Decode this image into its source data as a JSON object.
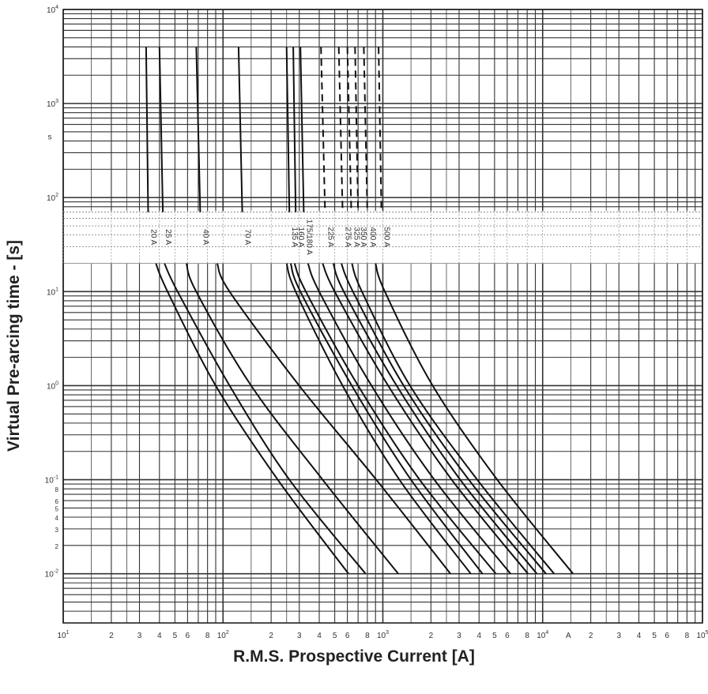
{
  "chart_data": {
    "type": "line",
    "xlabel": "R.M.S. Prospective Current [A]",
    "ylabel": "Virtual Pre-arcing time - [s]",
    "x_scale": "log",
    "y_scale": "log",
    "xlim": [
      10,
      100000
    ],
    "ylim": [
      0.003,
      10000
    ],
    "grid": true,
    "y_unit_label": "s",
    "x_unit_label": "A",
    "x_ticks": [
      {
        "label": "10",
        "sup": "1",
        "value": 10
      },
      {
        "label": "2",
        "value": 20
      },
      {
        "label": "3",
        "value": 30
      },
      {
        "label": "4",
        "value": 40
      },
      {
        "label": "5",
        "value": 50
      },
      {
        "label": "6",
        "value": 60
      },
      {
        "label": "8",
        "value": 80
      },
      {
        "label": "10",
        "sup": "2",
        "value": 100
      },
      {
        "label": "2",
        "value": 200
      },
      {
        "label": "3",
        "value": 300
      },
      {
        "label": "4",
        "value": 400
      },
      {
        "label": "5",
        "value": 500
      },
      {
        "label": "6",
        "value": 600
      },
      {
        "label": "8",
        "value": 800
      },
      {
        "label": "10",
        "sup": "3",
        "value": 1000
      },
      {
        "label": "2",
        "value": 2000
      },
      {
        "label": "3",
        "value": 3000
      },
      {
        "label": "4",
        "value": 4000
      },
      {
        "label": "5",
        "value": 5000
      },
      {
        "label": "6",
        "value": 6000
      },
      {
        "label": "8",
        "value": 8000
      },
      {
        "label": "10",
        "sup": "4",
        "value": 10000
      },
      {
        "label": "2",
        "value": 20000
      },
      {
        "label": "3",
        "value": 30000
      },
      {
        "label": "4",
        "value": 40000
      },
      {
        "label": "5",
        "value": 50000
      },
      {
        "label": "6",
        "value": 60000
      },
      {
        "label": "8",
        "value": 80000
      },
      {
        "label": "10",
        "sup": "5",
        "value": 100000
      }
    ],
    "y_ticks": [
      {
        "label": "10",
        "sup": "4",
        "value": 10000
      },
      {
        "label": "10",
        "sup": "3",
        "value": 1000
      },
      {
        "label": "10",
        "sup": "2",
        "value": 100
      },
      {
        "label": "10",
        "sup": "1",
        "value": 10
      },
      {
        "label": "10",
        "sup": "0",
        "value": 1
      },
      {
        "label": "10",
        "sup": "-1",
        "value": 0.1
      },
      {
        "label": "8",
        "value": 0.08
      },
      {
        "label": "6",
        "value": 0.06
      },
      {
        "label": "5",
        "value": 0.05
      },
      {
        "label": "4",
        "value": 0.04
      },
      {
        "label": "3",
        "value": 0.03
      },
      {
        "label": "2",
        "value": 0.02
      },
      {
        "label": "10",
        "sup": "-2",
        "value": 0.01
      }
    ],
    "series": [
      {
        "name": "20 A",
        "dashed": false,
        "upper": [
          [
            33,
            4000
          ],
          [
            34,
            70
          ]
        ],
        "lower": [
          [
            38,
            20
          ],
          [
            45,
            10
          ],
          [
            90,
            1
          ],
          [
            220,
            0.1
          ],
          [
            610,
            0.01
          ]
        ]
      },
      {
        "name": "25 A",
        "dashed": false,
        "upper": [
          [
            40,
            4000
          ],
          [
            42,
            70
          ]
        ],
        "lower": [
          [
            43,
            20
          ],
          [
            52,
            10
          ],
          [
            110,
            1
          ],
          [
            260,
            0.1
          ],
          [
            780,
            0.01
          ]
        ]
      },
      {
        "name": "40 A",
        "dashed": false,
        "upper": [
          [
            68,
            4000
          ],
          [
            72,
            70
          ]
        ],
        "lower": [
          [
            59,
            20
          ],
          [
            68,
            10
          ],
          [
            150,
            1
          ],
          [
            420,
            0.1
          ],
          [
            1250,
            0.01
          ]
        ]
      },
      {
        "name": "70 A",
        "dashed": false,
        "upper": [
          [
            125,
            4000
          ],
          [
            132,
            70
          ]
        ],
        "lower": [
          [
            92,
            20
          ],
          [
            110,
            10
          ],
          [
            300,
            1
          ],
          [
            910,
            0.1
          ],
          [
            2650,
            0.01
          ]
        ]
      },
      {
        "name": "135 A",
        "dashed": false,
        "upper": [
          [
            250,
            4000
          ],
          [
            260,
            70
          ]
        ],
        "lower": [
          [
            250,
            20
          ],
          [
            285,
            10
          ],
          [
            560,
            1
          ],
          [
            1270,
            0.1
          ],
          [
            3550,
            0.01
          ]
        ]
      },
      {
        "name": "160 A",
        "dashed": false,
        "upper": [
          [
            275,
            4000
          ],
          [
            285,
            70
          ]
        ],
        "lower": [
          [
            265,
            20
          ],
          [
            305,
            10
          ],
          [
            640,
            1
          ],
          [
            1500,
            0.1
          ],
          [
            4200,
            0.01
          ]
        ]
      },
      {
        "name": "175/180 A",
        "dashed": false,
        "upper": [
          [
            305,
            4000
          ],
          [
            320,
            70
          ]
        ],
        "lower": [
          [
            280,
            20
          ],
          [
            330,
            10
          ],
          [
            700,
            1
          ],
          [
            1700,
            0.1
          ],
          [
            5100,
            0.01
          ]
        ]
      },
      {
        "name": "225 A",
        "dashed": true,
        "upper": [
          [
            410,
            4000
          ],
          [
            435,
            70
          ]
        ],
        "lower": [
          [
            340,
            20
          ],
          [
            400,
            10
          ],
          [
            850,
            1
          ],
          [
            2100,
            0.1
          ],
          [
            6300,
            0.01
          ]
        ]
      },
      {
        "name": "275 A",
        "dashed": true,
        "upper": [
          [
            530,
            4000
          ],
          [
            560,
            70
          ]
        ],
        "lower": [
          [
            420,
            20
          ],
          [
            500,
            10
          ],
          [
            1080,
            1
          ],
          [
            2700,
            0.1
          ],
          [
            8100,
            0.01
          ]
        ]
      },
      {
        "name": "325 A",
        "dashed": true,
        "upper": [
          [
            600,
            4000
          ],
          [
            635,
            70
          ]
        ],
        "lower": [
          [
            490,
            20
          ],
          [
            570,
            10
          ],
          [
            1220,
            1
          ],
          [
            3050,
            0.1
          ],
          [
            9200,
            0.01
          ]
        ]
      },
      {
        "name": "350 A",
        "dashed": true,
        "upper": [
          [
            670,
            4000
          ],
          [
            700,
            70
          ]
        ],
        "lower": [
          [
            550,
            20
          ],
          [
            650,
            10
          ],
          [
            1350,
            1
          ],
          [
            3450,
            0.1
          ],
          [
            10500,
            0.01
          ]
        ]
      },
      {
        "name": "400 A",
        "dashed": true,
        "upper": [
          [
            760,
            4000
          ],
          [
            800,
            70
          ]
        ],
        "lower": [
          [
            640,
            20
          ],
          [
            740,
            10
          ],
          [
            1480,
            1
          ],
          [
            3900,
            0.1
          ],
          [
            11800,
            0.01
          ]
        ]
      },
      {
        "name": "500 A",
        "dashed": true,
        "upper": [
          [
            940,
            4000
          ],
          [
            980,
            70
          ]
        ],
        "lower": [
          [
            900,
            20
          ],
          [
            1030,
            10
          ],
          [
            2050,
            1
          ],
          [
            5200,
            0.1
          ],
          [
            15500,
            0.01
          ]
        ]
      }
    ]
  }
}
